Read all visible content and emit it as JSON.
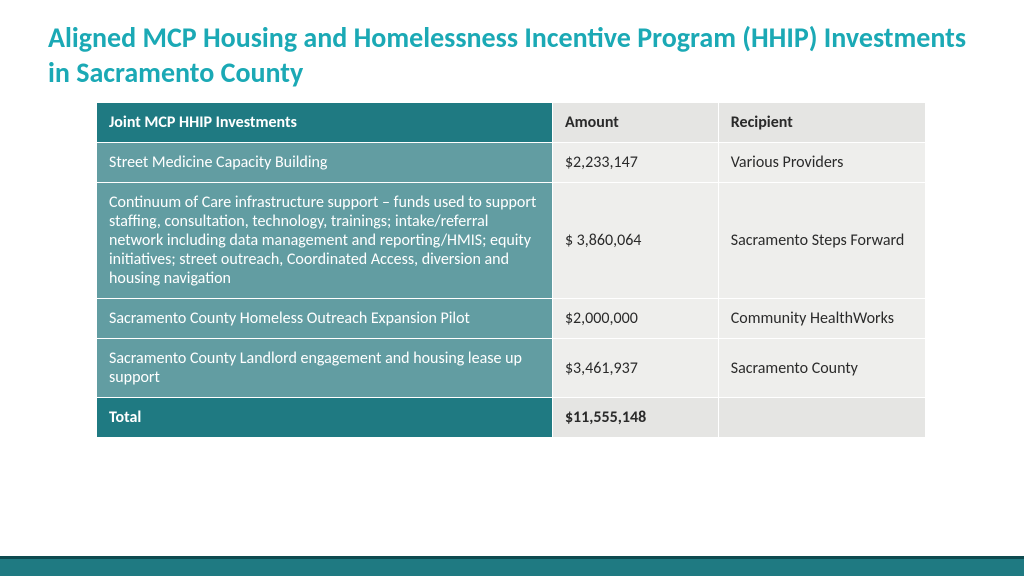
{
  "title": "Aligned MCP Housing and Homelessness Incentive Program (HHIP) Investments in Sacramento County",
  "table": {
    "headers": {
      "investments": "Joint MCP HHIP Investments",
      "amount": "Amount",
      "recipient": "Recipient"
    },
    "rows": [
      {
        "desc": "Street Medicine Capacity Building",
        "amount": "$2,233,147",
        "recipient": "Various Providers"
      },
      {
        "desc": "Continuum of Care infrastructure support – funds used to support staffing, consultation, technology, trainings; intake/referral network   including data management and reporting/HMIS; equity initiatives; street outreach, Coordinated Access, diversion and housing navigation",
        "amount": "$ 3,860,064",
        "recipient": "Sacramento Steps Forward"
      },
      {
        "desc": "Sacramento County Homeless Outreach Expansion Pilot",
        "amount": "$2,000,000",
        "recipient": "Community HealthWorks"
      },
      {
        "desc": "Sacramento County Landlord engagement and housing lease up support",
        "amount": "$3,461,937",
        "recipient": "Sacramento County"
      }
    ],
    "total": {
      "label": "Total",
      "amount": "$11,555,148",
      "recipient": ""
    }
  },
  "colors": {
    "title": "#1ba9b5",
    "header_dark": "#1f7a82",
    "header_light": "#e5e5e3",
    "row_dark": "#629da2",
    "row_light": "#eeeeec",
    "footer_bar": "#1f7a82",
    "footer_border": "#0e4a4f"
  }
}
